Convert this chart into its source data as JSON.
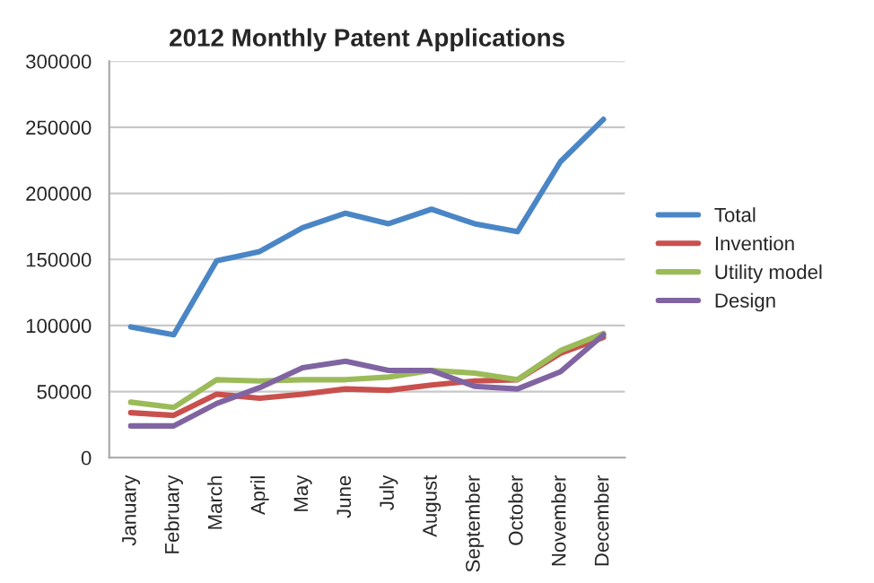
{
  "chart_data": {
    "type": "line",
    "title": "2012 Monthly Patent Applications",
    "categories": [
      "January",
      "February",
      "March",
      "April",
      "May",
      "June",
      "July",
      "August",
      "September",
      "October",
      "November",
      "December"
    ],
    "series": [
      {
        "name": "Total",
        "color": "#4a86c6",
        "values": [
          99000,
          93000,
          149000,
          156000,
          174000,
          185000,
          177000,
          188000,
          177000,
          171000,
          224000,
          256000
        ]
      },
      {
        "name": "Invention",
        "color": "#c9504d",
        "values": [
          34000,
          32000,
          48000,
          45000,
          48000,
          52000,
          51000,
          55000,
          58000,
          59000,
          79000,
          91000
        ]
      },
      {
        "name": "Utility model",
        "color": "#9bbb59",
        "values": [
          42000,
          38000,
          59000,
          58000,
          59000,
          59000,
          61000,
          66000,
          64000,
          59000,
          81000,
          94000
        ]
      },
      {
        "name": "Design",
        "color": "#8064a2",
        "values": [
          24000,
          24000,
          41000,
          53000,
          68000,
          73000,
          66000,
          66000,
          54000,
          52000,
          65000,
          93000
        ]
      }
    ],
    "ylim": [
      0,
      300000
    ],
    "yticks": [
      0,
      50000,
      100000,
      150000,
      200000,
      250000,
      300000
    ],
    "grid": "y",
    "legend": "right",
    "marker": "none",
    "line_style": "solid"
  }
}
